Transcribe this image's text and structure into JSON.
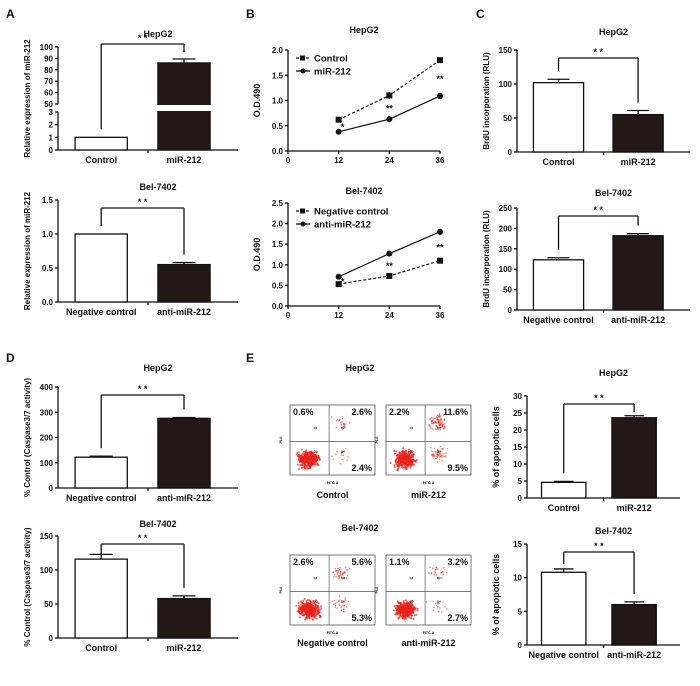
{
  "panels": [
    "A",
    "B",
    "C",
    "D",
    "E"
  ],
  "colors": {
    "control_bar": "#ffffff",
    "treatment_bar": "#231815",
    "axis": "#111111",
    "flow_dots": "#e8221b"
  },
  "chart_data": [
    {
      "type": "bar",
      "panel": "A",
      "title": "HepG2",
      "ylabel": "Relative expression of miR-212",
      "categories": [
        "Control",
        "miR-212"
      ],
      "values": [
        1,
        86
      ],
      "errors": [
        0,
        3.5
      ],
      "ylim": [
        0,
        100
      ],
      "broken_axis": [
        3,
        50
      ],
      "yticks": [
        "0",
        "1",
        "2",
        "3",
        "50",
        "60",
        "70",
        "80",
        "90",
        "100"
      ],
      "significance": "* *"
    },
    {
      "type": "bar",
      "panel": "A",
      "title": "Bel-7402",
      "ylabel": "Relative expression of miR-212",
      "categories": [
        "Negative control",
        "anti-miR-212"
      ],
      "values": [
        1.0,
        0.55
      ],
      "errors": [
        0,
        0.03
      ],
      "ylim": [
        0,
        1.5
      ],
      "yticks": [
        "0.0",
        "0.5",
        "1.0",
        "1.5"
      ],
      "significance": "* *"
    },
    {
      "type": "line",
      "panel": "B",
      "title": "HepG2",
      "ylabel": "O.D.490",
      "x": [
        12,
        24,
        36
      ],
      "xticks": [
        "0",
        "12",
        "24",
        "36"
      ],
      "xlim": [
        0,
        36
      ],
      "ylim": [
        0,
        2.0
      ],
      "yticks": [
        "0.0",
        "0.5",
        "1.0",
        "1.5",
        "2.0"
      ],
      "legend": "top-left",
      "series": [
        {
          "name": "Control",
          "values": [
            0.62,
            1.1,
            1.8
          ],
          "errors": [
            0.05,
            0.07,
            0.05
          ],
          "style": "dashed",
          "marker": "square"
        },
        {
          "name": "miR-212",
          "values": [
            0.38,
            0.63,
            1.09
          ],
          "errors": [
            0.02,
            0.06,
            0.06
          ],
          "style": "solid",
          "marker": "circle"
        }
      ],
      "annotations": [
        "*",
        "**",
        "**"
      ]
    },
    {
      "type": "line",
      "panel": "B",
      "title": "Bel-7402",
      "ylabel": "O.D.490",
      "x": [
        12,
        24,
        36
      ],
      "xticks": [
        "0",
        "12",
        "24",
        "36"
      ],
      "xlim": [
        0,
        36
      ],
      "ylim": [
        0,
        2.5
      ],
      "yticks": [
        "0.0",
        "0.5",
        "1.0",
        "1.5",
        "2.0",
        "2.5"
      ],
      "legend": "top-left",
      "series": [
        {
          "name": "Negative control",
          "values": [
            0.53,
            0.73,
            1.1
          ],
          "errors": [
            0.03,
            0.05,
            0.05
          ],
          "style": "dashed",
          "marker": "square"
        },
        {
          "name": "anti-miR-212",
          "values": [
            0.71,
            1.27,
            1.8
          ],
          "errors": [
            0.02,
            0.07,
            0.08
          ],
          "style": "solid",
          "marker": "circle"
        }
      ],
      "annotations": [
        "*",
        "**",
        "**"
      ]
    },
    {
      "type": "bar",
      "panel": "C",
      "title": "HepG2",
      "ylabel": "BrdU incorporation (RLU)",
      "categories": [
        "Control",
        "miR-212"
      ],
      "values": [
        102,
        55
      ],
      "errors": [
        5,
        6
      ],
      "ylim": [
        0,
        150
      ],
      "yticks": [
        "0",
        "50",
        "100",
        "150"
      ],
      "significance": "* *"
    },
    {
      "type": "bar",
      "panel": "C",
      "title": "Bel-7402",
      "ylabel": "BrdU incorporation (RLU)",
      "categories": [
        "Negative control",
        "anti-miR-212"
      ],
      "values": [
        123,
        182
      ],
      "errors": [
        5,
        5
      ],
      "ylim": [
        0,
        250
      ],
      "yticks": [
        "0",
        "50",
        "100",
        "150",
        "200",
        "250"
      ],
      "significance": "* *"
    },
    {
      "type": "bar",
      "panel": "D",
      "title": "HepG2",
      "ylabel": "% Control (Caspase3/7 activity)",
      "categories": [
        "Negative control",
        "anti-miR-212"
      ],
      "values": [
        122,
        276
      ],
      "errors": [
        4,
        3
      ],
      "ylim": [
        0,
        400
      ],
      "yticks": [
        "0",
        "100",
        "200",
        "300",
        "400"
      ],
      "significance": "* *"
    },
    {
      "type": "bar",
      "panel": "D",
      "title": "Bel-7402",
      "ylabel": "% Control (Caspase3/7 activity)",
      "categories": [
        "Control",
        "miR-212"
      ],
      "values": [
        116,
        58
      ],
      "errors": [
        7,
        4
      ],
      "ylim": [
        0,
        150
      ],
      "yticks": [
        "0",
        "50",
        "100",
        "150"
      ],
      "significance": "* *"
    },
    {
      "type": "scatter",
      "panel": "E",
      "title": "HepG2",
      "xlabel": "FITC-A",
      "ylabel": "PI-A",
      "quadrant_labels": [
        "Q1",
        "Q2",
        "Q3",
        "Q4"
      ],
      "plots": [
        {
          "label": "Control",
          "upper_left": "0.6%",
          "upper_right": "2.6%",
          "lower_right": "2.4%"
        },
        {
          "label": "miR-212",
          "upper_left": "2.2%",
          "upper_right": "11.6%",
          "lower_right": "9.5%"
        }
      ]
    },
    {
      "type": "scatter",
      "panel": "E",
      "title": "Bel-7402",
      "xlabel": "FITC-A",
      "ylabel": "PI-A",
      "quadrant_labels": [
        "Q1",
        "Q2",
        "Q3",
        "Q4"
      ],
      "plots": [
        {
          "label": "Negative control",
          "upper_left": "2.6%",
          "upper_right": "5.6%",
          "lower_right": "5.3%"
        },
        {
          "label": "anti-miR-212",
          "upper_left": "1.1%",
          "upper_right": "3.2%",
          "lower_right": "2.7%"
        }
      ]
    },
    {
      "type": "bar",
      "panel": "E",
      "title": "HepG2",
      "ylabel": "% of apopotic cells",
      "categories": [
        "Control",
        "miR-212"
      ],
      "values": [
        4.6,
        23.6
      ],
      "errors": [
        0.3,
        0.6
      ],
      "ylim": [
        0,
        30
      ],
      "yticks": [
        "0",
        "5",
        "10",
        "15",
        "20",
        "25",
        "30"
      ],
      "significance": "* *"
    },
    {
      "type": "bar",
      "panel": "E",
      "title": "Bel-7402",
      "ylabel": "% of apopotic cells",
      "categories": [
        "Negative control",
        "anti-miR-212"
      ],
      "values": [
        10.8,
        6.0
      ],
      "errors": [
        0.5,
        0.4
      ],
      "ylim": [
        0,
        15
      ],
      "yticks": [
        "0",
        "5",
        "10",
        "15"
      ],
      "significance": "* *"
    }
  ]
}
